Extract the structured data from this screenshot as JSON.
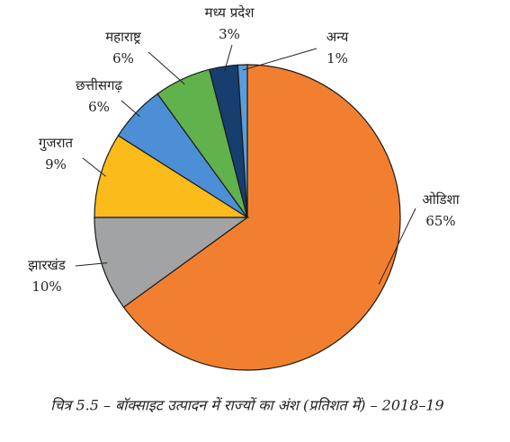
{
  "chart_data": {
    "type": "pie",
    "caption": "चित्र 5.5 – बॉक्साइट उत्पादन में राज्यों का अंश (प्रतिशत में) – 2018–19",
    "categories": [
      "ओडिशा",
      "झारखंड",
      "गुजरात",
      "छत्तीसगढ़",
      "महाराष्ट्र",
      "मध्य प्रदेश",
      "अन्य"
    ],
    "values": [
      65,
      10,
      9,
      6,
      6,
      3,
      1
    ],
    "value_labels": [
      "65%",
      "10%",
      "9%",
      "6%",
      "6%",
      "3%",
      "1%"
    ],
    "colors": [
      "#f27f2f",
      "#a1a3a4",
      "#fbbb1b",
      "#4c8fd6",
      "#61b14d",
      "#163f6f",
      "#5b9ddb"
    ]
  }
}
